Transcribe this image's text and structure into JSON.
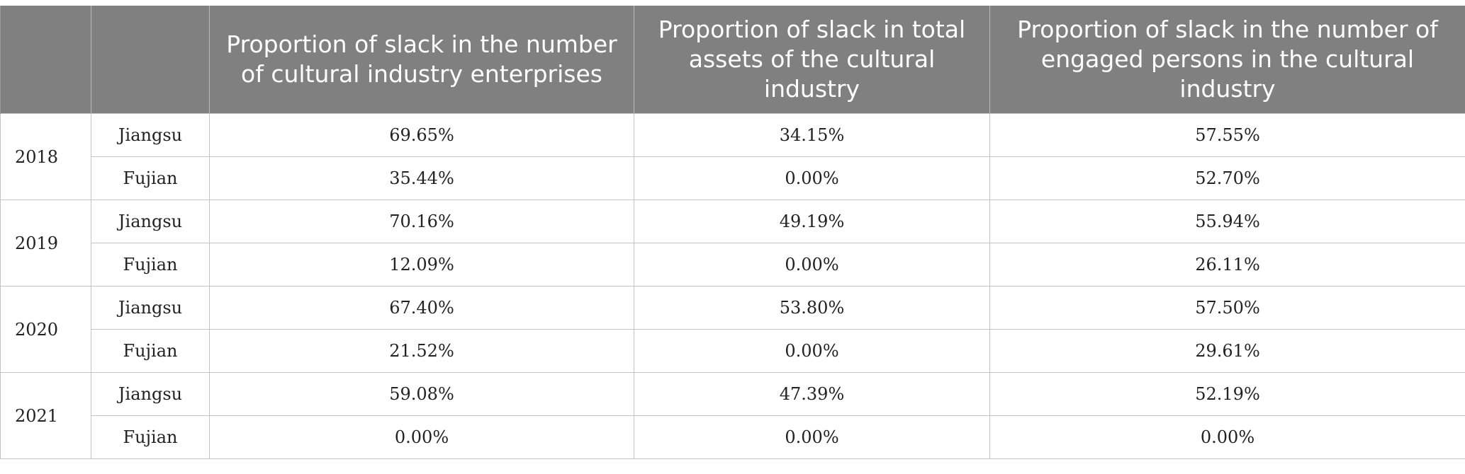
{
  "table": {
    "headers": [
      "",
      "",
      "Proportion of slack in the number of cultural industry enterprises",
      "Proportion of slack in total assets of the cultural industry",
      "Proportion of slack in the number of engaged persons in the cultural industry"
    ],
    "groups": [
      {
        "year": "2018",
        "rows": [
          {
            "province": "Jiangsu",
            "enterprises": "69.65%",
            "assets": "34.15%",
            "persons": "57.55%"
          },
          {
            "province": "Fujian",
            "enterprises": "35.44%",
            "assets": "0.00%",
            "persons": "52.70%"
          }
        ]
      },
      {
        "year": "2019",
        "rows": [
          {
            "province": "Jiangsu",
            "enterprises": "70.16%",
            "assets": "49.19%",
            "persons": "55.94%"
          },
          {
            "province": "Fujian",
            "enterprises": "12.09%",
            "assets": "0.00%",
            "persons": "26.11%"
          }
        ]
      },
      {
        "year": "2020",
        "rows": [
          {
            "province": "Jiangsu",
            "enterprises": "67.40%",
            "assets": "53.80%",
            "persons": "57.50%"
          },
          {
            "province": "Fujian",
            "enterprises": "21.52%",
            "assets": "0.00%",
            "persons": "29.61%"
          }
        ]
      },
      {
        "year": "2021",
        "rows": [
          {
            "province": "Jiangsu",
            "enterprises": "59.08%",
            "assets": "47.39%",
            "persons": "52.19%"
          },
          {
            "province": "Fujian",
            "enterprises": "0.00%",
            "assets": "0.00%",
            "persons": "0.00%"
          }
        ]
      }
    ]
  }
}
